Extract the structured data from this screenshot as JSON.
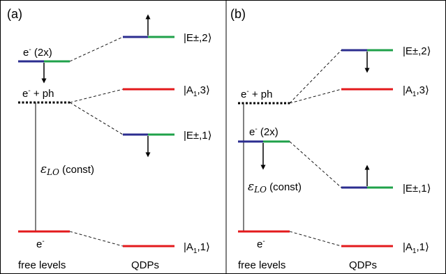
{
  "colors": {
    "red": "#e31a1c",
    "blue": "#2b2d8f",
    "green": "#1fa14a",
    "black": "#000000"
  },
  "panel_a": {
    "label": "(a)",
    "e2x_base": "e",
    "e2x_sup": "-",
    "e2x_rest": " (2x)",
    "eph_base": "e",
    "eph_sup": "-",
    "eph_rest": " + ph",
    "eps_sym": "ε",
    "eps_sub": "LO",
    "eps_rest": " (const)",
    "e_base": "e",
    "e_sup": "-",
    "free_levels": "free levels",
    "qdps": "QDPs",
    "kets": [
      {
        "pre": "|E±,2",
        "sub": "",
        "post": "",
        "close": "⟩"
      },
      {
        "pre": "|A",
        "sub": "1",
        "post": ",3",
        "close": "⟩"
      },
      {
        "pre": "|E±,1",
        "sub": "",
        "post": "",
        "close": "⟩"
      },
      {
        "pre": "|A",
        "sub": "1",
        "post": ",1",
        "close": "⟩"
      }
    ]
  },
  "panel_b": {
    "label": "(b)",
    "e2x_base": "e",
    "e2x_sup": "-",
    "e2x_rest": " (2x)",
    "eph_base": "e",
    "eph_sup": "-",
    "eph_rest": " + ph",
    "eps_sym": "ε",
    "eps_sub": "LO",
    "eps_rest": " (const)",
    "e_base": "e",
    "e_sup": "-",
    "free_levels": "free levels",
    "qdps": "QDPs",
    "kets": [
      {
        "pre": "|E±,2",
        "sub": "",
        "post": "",
        "close": "⟩"
      },
      {
        "pre": "|A",
        "sub": "1",
        "post": ",3",
        "close": "⟩"
      },
      {
        "pre": "|E±,1",
        "sub": "",
        "post": "",
        "close": "⟩"
      },
      {
        "pre": "|A",
        "sub": "1",
        "post": ",1",
        "close": "⟩"
      }
    ]
  }
}
